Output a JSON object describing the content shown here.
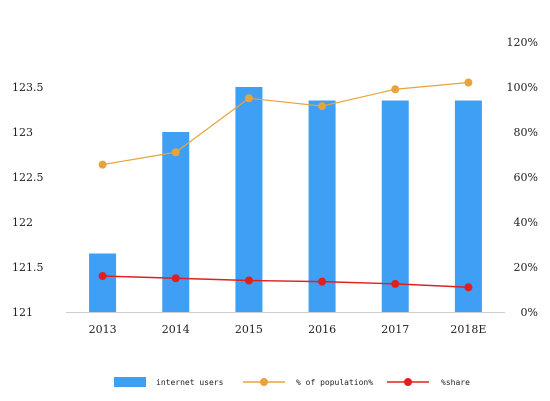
{
  "chart_data": {
    "type": "bar",
    "categories": [
      "2013",
      "2014",
      "2015",
      "2016",
      "2017",
      "2018E"
    ],
    "y_left": {
      "ylim": [
        121,
        124
      ],
      "ticks": [
        "121",
        "121.5",
        "122",
        "122.5",
        "123",
        "123.5"
      ]
    },
    "y_right": {
      "ylim": [
        0,
        1.2
      ],
      "ticks": [
        "0%",
        "20%",
        "40%",
        "60%",
        "80%",
        "100%",
        "120%"
      ]
    },
    "series": [
      {
        "name": "internet users",
        "kind": "bar",
        "axis": "left",
        "color": "#3f9ff5",
        "values": [
          121.65,
          123.0,
          123.5,
          123.35,
          123.35,
          123.35
        ]
      },
      {
        "name": "% of population%",
        "kind": "line",
        "axis": "right",
        "color": "#e8a33b",
        "values": [
          0.655,
          0.71,
          0.95,
          0.915,
          0.99,
          1.02
        ]
      },
      {
        "name": "%share",
        "kind": "line",
        "axis": "right",
        "color": "#e0201f",
        "values": [
          0.16,
          0.15,
          0.14,
          0.135,
          0.125,
          0.11
        ]
      }
    ],
    "legend": {
      "position": "bottom"
    },
    "grid": false
  }
}
